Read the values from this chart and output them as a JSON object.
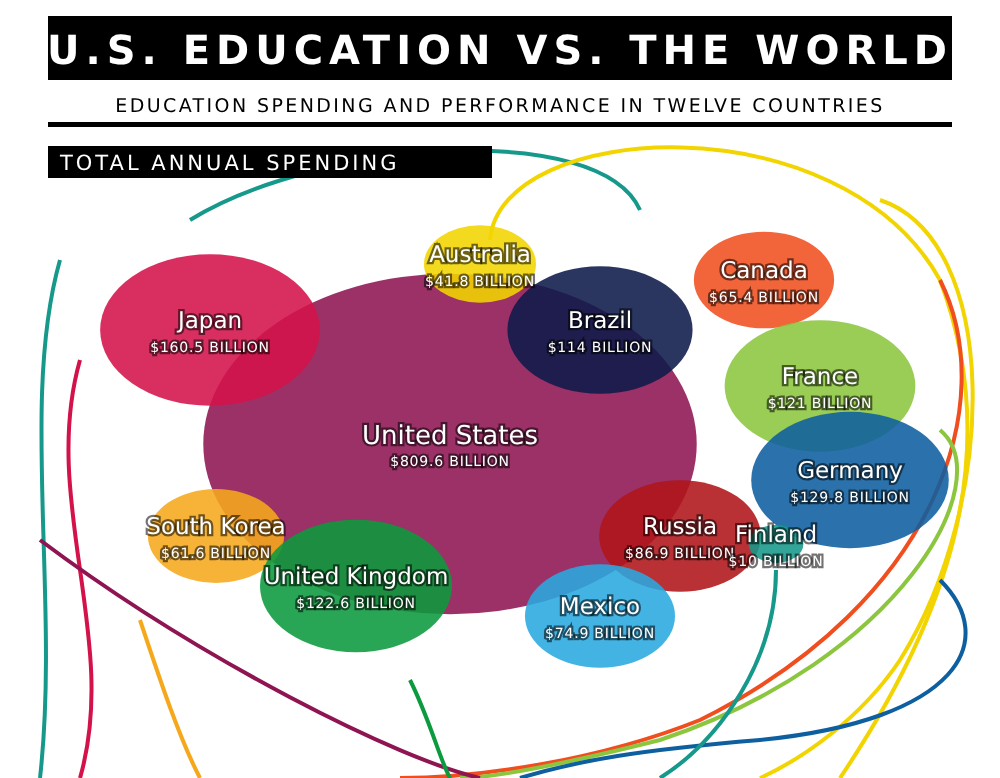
{
  "chart_data": {
    "type": "other",
    "title": "U.S. EDUCATION VS. THE WORLD",
    "subtitle": "EDUCATION SPENDING AND PERFORMANCE IN TWELVE COUNTRIES",
    "annotations": [
      "TOTAL ANNUAL SPENDING"
    ],
    "categories": [
      "United States",
      "Japan",
      "Australia",
      "Canada",
      "Brazil",
      "France",
      "Germany",
      "South Korea",
      "Russia",
      "Mexico",
      "United Kingdom",
      "Finland"
    ],
    "values": [
      809.6,
      160.5,
      41.8,
      65.4,
      114,
      121,
      129.8,
      61.6,
      86.9,
      74.9,
      122.6,
      10
    ],
    "value_labels": [
      "$809.6 BILLION",
      "$160.5 BILLION",
      "$41.8 BILLION",
      "$65.4 BILLION",
      "$114 BILLION",
      "$121 BILLION",
      "$129.8 BILLION",
      "$61.6 BILLION",
      "$86.9 BILLION",
      "$74.9 BILLION",
      "$122.6 BILLION",
      "$10 BILLION"
    ],
    "colors": [
      "#8e1552",
      "#d4124a",
      "#f2d500",
      "#f04e1f",
      "#0d1a4a",
      "#8cc63f",
      "#0e5fa0",
      "#f5a81c",
      "#b01419",
      "#29a8e0",
      "#0b9a3e",
      "#16998a"
    ]
  }
}
